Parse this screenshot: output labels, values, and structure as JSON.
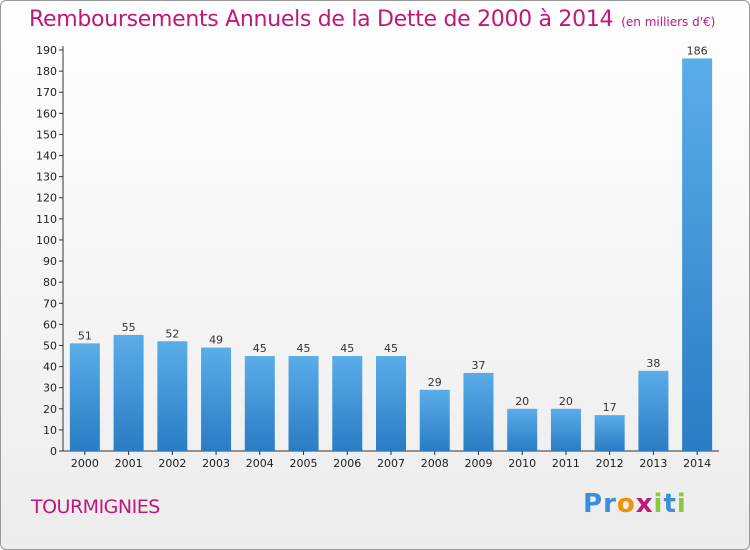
{
  "chart_data": {
    "type": "bar",
    "title": "Remboursements Annuels de la Dette de 2000 à 2014",
    "subtitle": "(en milliers d'€)",
    "categories": [
      "2000",
      "2001",
      "2002",
      "2003",
      "2004",
      "2005",
      "2006",
      "2007",
      "2008",
      "2009",
      "2010",
      "2011",
      "2012",
      "2013",
      "2014"
    ],
    "values": [
      51,
      55,
      52,
      49,
      45,
      45,
      45,
      45,
      29,
      37,
      20,
      20,
      17,
      38,
      186
    ],
    "xlabel": "",
    "ylabel": "",
    "ylim": [
      0,
      190
    ],
    "yticks": [
      0,
      10,
      20,
      30,
      40,
      50,
      60,
      70,
      80,
      90,
      100,
      110,
      120,
      130,
      140,
      150,
      160,
      170,
      180,
      190
    ],
    "grid": false,
    "bar_color": "#3a8fd6"
  },
  "footer": {
    "commune": "TOURMIGNIES",
    "logo_letters": [
      "P",
      "r",
      "o",
      "x",
      "i",
      "t",
      "i"
    ],
    "logo_colors": [
      "#3b8fd8",
      "#3b8fd8",
      "#f29100",
      "#c0187a",
      "#8dc63f",
      "#3b8fd8",
      "#8dc63f"
    ]
  }
}
